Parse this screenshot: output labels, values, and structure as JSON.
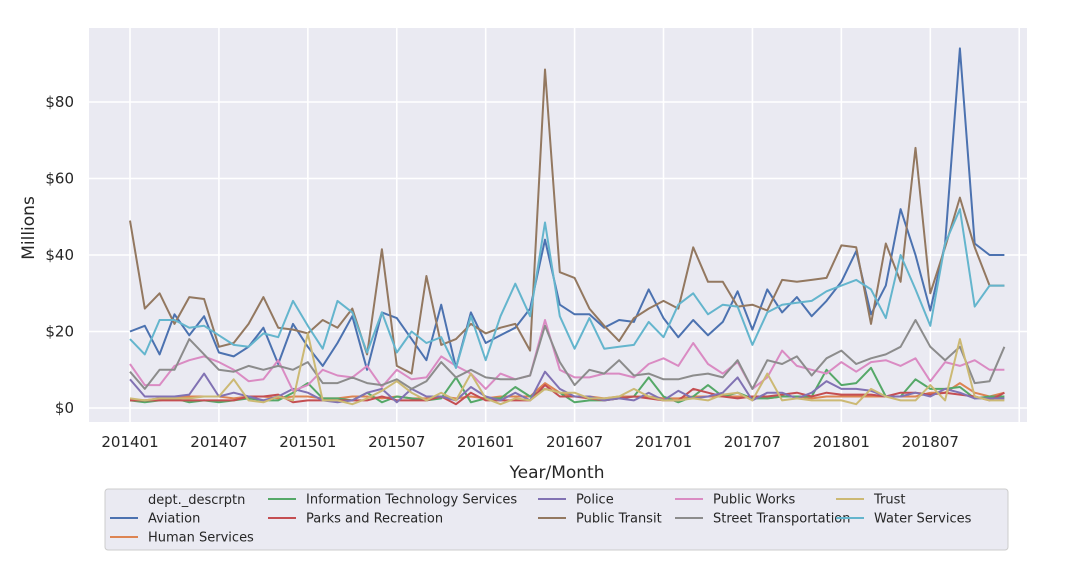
{
  "chart_data": {
    "type": "line",
    "xlabel": "Year/Month",
    "ylabel": "Millions",
    "x_tick_labels": [
      "201401",
      "201407",
      "201501",
      "201507",
      "201601",
      "201607",
      "201701",
      "201707",
      "201801",
      "201807"
    ],
    "y_tick_labels": [
      "$0",
      "$20",
      "$40",
      "$60",
      "$80"
    ],
    "y_ticks": [
      0,
      20,
      40,
      60,
      80
    ],
    "ylim": [
      -4,
      99
    ],
    "x_start": "2014-01",
    "x_end": "2018-12",
    "grid": true,
    "legend": {
      "title": "dept._descrptn",
      "placement": "bottom-center"
    },
    "series": [
      {
        "name": "Aviation",
        "color": "#4c72b0",
        "values": [
          20,
          21.5,
          14,
          24.5,
          19,
          24,
          14.5,
          13.5,
          16,
          21,
          11.5,
          22,
          16,
          11,
          17,
          24,
          10,
          25,
          23.5,
          18,
          12.5,
          27,
          10.5,
          25,
          17,
          19,
          21,
          26,
          44,
          27,
          24.5,
          24.5,
          21,
          23,
          22.5,
          31,
          23.5,
          18.5,
          23,
          19,
          22.5,
          30.5,
          20.5,
          31,
          25,
          29,
          24,
          28,
          33,
          41,
          24.5,
          32,
          52,
          40,
          25.5,
          43,
          94,
          43,
          40,
          40
        ]
      },
      {
        "name": "Human Services",
        "color": "#dd8452",
        "values": [
          2,
          2,
          2.5,
          3,
          3,
          3,
          3,
          2.5,
          3,
          3,
          2.5,
          3,
          3,
          2.5,
          2.5,
          3,
          3,
          2.5,
          3,
          2.5,
          2.5,
          3,
          2.5,
          3,
          2.5,
          3,
          3,
          3,
          6.5,
          4,
          3,
          3,
          2.5,
          3,
          3,
          3,
          2.5,
          2.5,
          3,
          3,
          3,
          3,
          3,
          2.5,
          3,
          3,
          2.5,
          3,
          3,
          3,
          3,
          3,
          3,
          3,
          4,
          4,
          6.5,
          4,
          3,
          4
        ]
      },
      {
        "name": "Information Technology Services",
        "color": "#55a868",
        "values": [
          2,
          1.5,
          2,
          2.5,
          1.5,
          2,
          1.5,
          2,
          2.5,
          2,
          2,
          4,
          6.5,
          2.5,
          2.5,
          2,
          4,
          1.5,
          3,
          2.5,
          2,
          2.5,
          8,
          1.5,
          2.5,
          2.5,
          5.5,
          3,
          5,
          4,
          1.5,
          2,
          2,
          2.5,
          3,
          8,
          3,
          1.5,
          3,
          6,
          3,
          4,
          2.5,
          2.5,
          3,
          3,
          3,
          10,
          6,
          6.5,
          10.5,
          3,
          3,
          7.5,
          5,
          5,
          5.5,
          2.5,
          3,
          3
        ]
      },
      {
        "name": "Parks and Recreation",
        "color": "#c44e52",
        "values": [
          2,
          2,
          2,
          2,
          2,
          2,
          2,
          2,
          3,
          3,
          3.5,
          1.5,
          2,
          2,
          2,
          2,
          2,
          3,
          2,
          2,
          2,
          3,
          1,
          4,
          2,
          2,
          2,
          2,
          6,
          3,
          3,
          2.5,
          2,
          2.5,
          3,
          2.5,
          2,
          2,
          5,
          4,
          3,
          2.5,
          3,
          3,
          3.5,
          4,
          3,
          4,
          3.5,
          3.5,
          3.5,
          3,
          4,
          4,
          3.5,
          4,
          3.5,
          3,
          2,
          4
        ]
      },
      {
        "name": "Police",
        "color": "#8172b3",
        "values": [
          7.5,
          3,
          3,
          3,
          3.5,
          9,
          3,
          4,
          3,
          2,
          3,
          5,
          4,
          2,
          1.5,
          2,
          4,
          5,
          1.5,
          5,
          3,
          3,
          2,
          5.5,
          3,
          2,
          4,
          2,
          9.5,
          5,
          3,
          3,
          2,
          2.5,
          2,
          4,
          2,
          4.5,
          2.5,
          3,
          4,
          8,
          2,
          4,
          4,
          2.5,
          4,
          7,
          5,
          5,
          4.5,
          3,
          3,
          4,
          3,
          5,
          4,
          2.5,
          2.5,
          2.5
        ]
      },
      {
        "name": "Public Transit",
        "color": "#937860",
        "values": [
          49,
          26,
          30,
          22,
          29,
          28.5,
          16,
          17,
          22,
          29,
          21,
          20.5,
          19.5,
          23,
          21,
          26,
          14,
          41.5,
          11,
          9,
          34.5,
          16.5,
          18,
          22,
          19.5,
          21,
          22,
          15,
          88.5,
          35.5,
          34,
          26,
          21.5,
          17.5,
          23.5,
          26,
          28,
          26,
          42,
          33,
          33,
          26.5,
          27,
          25.5,
          33.5,
          33,
          33.5,
          34,
          42.5,
          42,
          22,
          43,
          33,
          68,
          30,
          42,
          55,
          42,
          32,
          32
        ]
      },
      {
        "name": "Public Works",
        "color": "#da8bc3",
        "values": [
          11.5,
          6,
          6,
          11,
          12.5,
          13.5,
          12,
          10,
          7,
          7.5,
          12.5,
          4.5,
          6,
          10,
          8.5,
          8,
          11,
          5.5,
          10,
          7.5,
          8,
          13.5,
          11,
          9,
          5,
          9,
          7.5,
          8.5,
          23,
          10,
          8,
          8,
          9,
          9,
          8,
          11.5,
          13,
          11,
          17,
          11.5,
          9,
          12,
          5,
          8,
          15,
          11,
          10,
          9,
          12,
          9.5,
          12,
          12.5,
          11,
          13,
          7,
          12,
          11,
          12.5,
          10,
          10
        ]
      },
      {
        "name": "Street Transportation",
        "color": "#8c8c8c",
        "values": [
          9.5,
          5,
          10,
          10,
          18,
          14,
          10,
          9.5,
          11,
          10,
          11,
          10,
          12,
          6.5,
          6.5,
          8,
          6.5,
          6,
          7.5,
          5,
          7,
          12,
          8,
          10,
          8,
          7.5,
          7.5,
          8.5,
          21.5,
          12,
          6,
          10,
          9,
          12.5,
          8.5,
          9,
          7.5,
          7.5,
          8.5,
          9,
          8,
          12.5,
          5,
          12.5,
          11.5,
          13.5,
          8.5,
          13,
          15,
          11.5,
          13,
          14,
          16,
          23,
          16,
          12.5,
          16,
          6.5,
          7,
          16
        ]
      },
      {
        "name": "Trust",
        "color": "#ccb974",
        "values": [
          2.5,
          2,
          2.5,
          2.5,
          2.5,
          3,
          3,
          7.5,
          2,
          1.5,
          3,
          2,
          19.5,
          2,
          2,
          1,
          2.5,
          4.5,
          7,
          4,
          2,
          4,
          2,
          9,
          2.5,
          1,
          2.5,
          2,
          5,
          4,
          4,
          2.5,
          2.5,
          3,
          5,
          3,
          2,
          2,
          2.5,
          2,
          3.5,
          4,
          2,
          9,
          2,
          2.5,
          2,
          2,
          2,
          1,
          5,
          3,
          2,
          2,
          6,
          2,
          18,
          3,
          2,
          2
        ]
      },
      {
        "name": "Water Services",
        "color": "#64b5cd",
        "values": [
          18,
          14,
          23,
          23,
          21,
          21.5,
          19,
          16.5,
          16,
          19.5,
          18.5,
          28,
          21.5,
          15.5,
          28,
          25,
          14.5,
          25,
          14.5,
          20,
          17,
          18.5,
          10.5,
          24,
          12.5,
          24,
          32.5,
          24,
          48.5,
          24,
          15.5,
          23.5,
          15.5,
          16,
          16.5,
          22.5,
          18.5,
          27,
          30,
          24.5,
          27,
          26.5,
          16.5,
          25,
          27,
          27.5,
          28,
          30.5,
          32,
          33.5,
          31,
          23.5,
          40,
          31,
          21.5,
          43,
          52,
          26.5,
          32,
          32
        ]
      }
    ]
  }
}
